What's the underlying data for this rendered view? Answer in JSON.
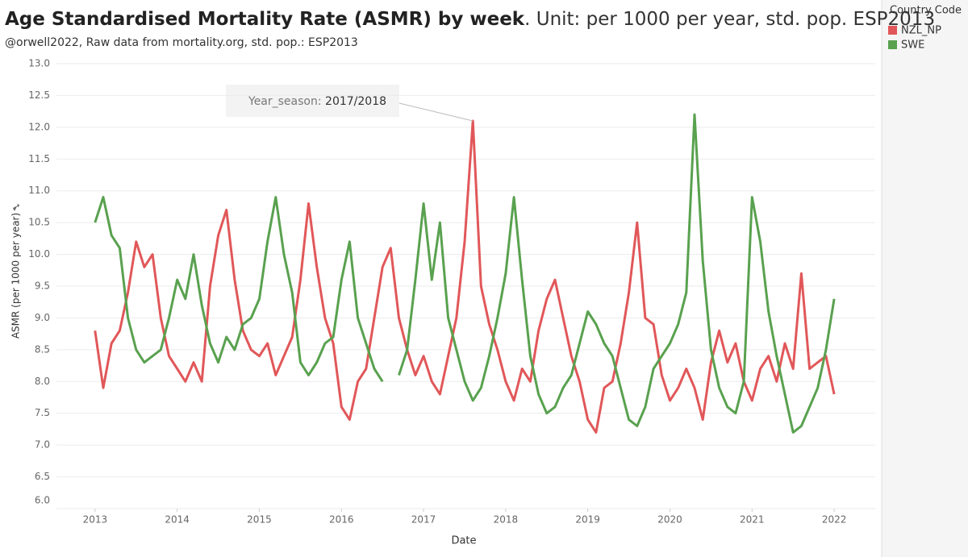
{
  "chart_data": {
    "type": "line",
    "title": "Age Standardised Mortality Rate (ASMR) by week",
    "title_suffix": ". Unit: per 1000 per year, std. pop. ESP2013",
    "subtitle": "@orwell2022,  Raw data from mortality.org, std. pop.: ESP2013",
    "x_label": "Date",
    "y_label": "ASMR (per 1000 per year)",
    "legend_title": "Country Code",
    "legend_position": "right",
    "grid": true,
    "annotation": {
      "label": "Year_season:",
      "value": "2017/2018"
    },
    "xlim": [
      2012.53,
      2022.5
    ],
    "xticks": [
      2013,
      2014,
      2015,
      2016,
      2017,
      2018,
      2019,
      2020,
      2021,
      2022
    ],
    "ylim": [
      6,
      13
    ],
    "yticks": [
      {
        "value": 6,
        "label": "6.0"
      },
      6.5,
      {
        "value": 7,
        "label": "7.0"
      },
      7.5,
      {
        "value": 8,
        "label": "8.0"
      },
      8.5,
      {
        "value": 9,
        "label": "9.0"
      },
      9.5,
      {
        "value": 10,
        "label": "10.0"
      },
      10.5,
      {
        "value": 11,
        "label": "11.0"
      },
      11.5,
      {
        "value": 12,
        "label": "12.0"
      },
      12.5,
      {
        "value": 13,
        "label": "13.0"
      }
    ],
    "x": [
      2013.0,
      2013.1,
      2013.2,
      2013.3,
      2013.4,
      2013.5,
      2013.6,
      2013.7,
      2013.8,
      2013.9,
      2014.0,
      2014.1,
      2014.2,
      2014.3,
      2014.4,
      2014.5,
      2014.6,
      2014.7,
      2014.8,
      2014.9,
      2015.0,
      2015.1,
      2015.2,
      2015.3,
      2015.4,
      2015.5,
      2015.6,
      2015.7,
      2015.8,
      2015.9,
      2016.0,
      2016.1,
      2016.2,
      2016.3,
      2016.4,
      2016.5,
      2016.6,
      2016.7,
      2016.8,
      2016.9,
      2017.0,
      2017.1,
      2017.2,
      2017.3,
      2017.4,
      2017.5,
      2017.6,
      2017.7,
      2017.8,
      2017.9,
      2018.0,
      2018.1,
      2018.2,
      2018.3,
      2018.4,
      2018.5,
      2018.6,
      2018.7,
      2018.8,
      2018.9,
      2019.0,
      2019.1,
      2019.2,
      2019.3,
      2019.4,
      2019.5,
      2019.6,
      2019.7,
      2019.8,
      2019.9,
      2020.0,
      2020.1,
      2020.2,
      2020.3,
      2020.4,
      2020.5,
      2020.6,
      2020.7,
      2020.8,
      2020.9,
      2021.0,
      2021.1,
      2021.2,
      2021.3,
      2021.4,
      2021.5,
      2021.6,
      2021.7,
      2021.8,
      2021.9,
      2022.0
    ],
    "series": [
      {
        "name": "NZL_NP",
        "color": "#e15759",
        "values": [
          8.8,
          7.9,
          8.6,
          8.8,
          9.4,
          10.2,
          9.8,
          10.0,
          9.0,
          8.4,
          8.2,
          8.0,
          8.3,
          8.0,
          9.5,
          10.3,
          10.7,
          9.6,
          8.8,
          8.5,
          8.4,
          8.6,
          8.1,
          8.4,
          8.7,
          9.6,
          10.8,
          9.8,
          9.0,
          8.6,
          7.6,
          7.4,
          8.0,
          8.2,
          9.0,
          9.8,
          10.1,
          9.0,
          8.5,
          8.1,
          8.4,
          8.0,
          7.8,
          8.4,
          9.0,
          10.2,
          12.1,
          9.5,
          8.9,
          8.5,
          8.0,
          7.7,
          8.2,
          8.0,
          8.8,
          9.3,
          9.6,
          9.0,
          8.4,
          8.0,
          7.4,
          7.2,
          7.9,
          8.0,
          8.6,
          9.4,
          10.5,
          9.0,
          8.9,
          8.1,
          7.7,
          7.9,
          8.2,
          7.9,
          7.4,
          8.3,
          8.8,
          8.3,
          8.6,
          8.0,
          7.7,
          8.2,
          8.4,
          8.0,
          8.6,
          8.2,
          9.7,
          8.2,
          8.3,
          8.4,
          7.8
        ]
      },
      {
        "name": "SWE",
        "color": "#59a14f",
        "values": [
          10.5,
          10.9,
          10.3,
          10.1,
          9.0,
          8.5,
          8.3,
          8.4,
          8.5,
          9.0,
          9.6,
          9.3,
          10.0,
          9.2,
          8.6,
          8.3,
          8.7,
          8.5,
          8.9,
          9.0,
          9.3,
          10.2,
          10.9,
          10.0,
          9.4,
          8.3,
          8.1,
          8.3,
          8.6,
          8.7,
          9.6,
          10.2,
          9.0,
          8.6,
          8.2,
          8.0,
          null,
          8.1,
          8.5,
          9.6,
          10.8,
          9.6,
          10.5,
          9.0,
          8.5,
          8.0,
          7.7,
          7.9,
          8.4,
          9.0,
          9.7,
          10.9,
          9.6,
          8.4,
          7.8,
          7.5,
          7.6,
          7.9,
          8.1,
          8.6,
          9.1,
          8.9,
          8.6,
          8.4,
          7.9,
          7.4,
          7.3,
          7.6,
          8.2,
          8.4,
          8.6,
          8.9,
          9.4,
          12.2,
          9.9,
          8.5,
          7.9,
          7.6,
          7.5,
          8.0,
          10.9,
          10.2,
          9.1,
          8.4,
          7.8,
          7.2,
          7.3,
          7.6,
          7.9,
          8.5,
          9.3
        ]
      }
    ]
  }
}
